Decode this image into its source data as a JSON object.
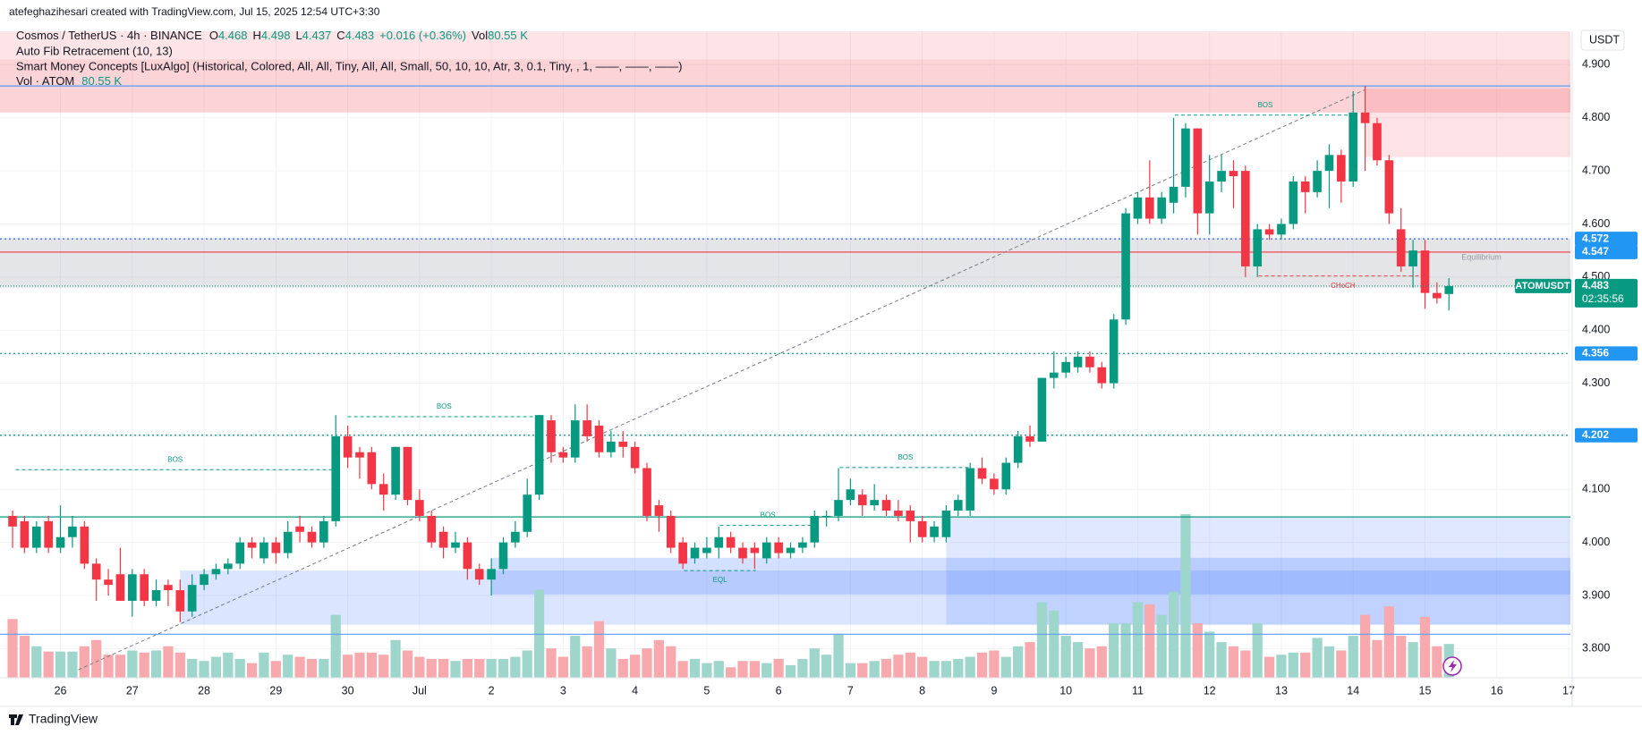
{
  "header": {
    "created": "atefeghazihesari created with TradingView.com, Jul 15, 2025 12:54 UTC+3:30",
    "symbol": "Cosmos / TetherUS · 4h · BINANCE",
    "open_label": "O",
    "high_label": "H",
    "low_label": "L",
    "close_label": "C",
    "change": "+0.016 (+0.36%)",
    "vol_label": "Vol",
    "vol": "80.55 K",
    "indicators": [
      "Auto Fib Retracement (10, 13)",
      "Smart Money Concepts [LuxAlgo] (Historical, Colored, All, All, Tiny, All, All, Small, 50, 10, 10, Atr, 3, 0.1, Tiny, , 1, ——, ——, ——)",
      "Vol · ATOM"
    ],
    "vol_indicator_value": "80.55 K"
  },
  "chart_data": {
    "type": "candlestick",
    "unit": "USDT",
    "grid": true,
    "up_color": "#089981",
    "down_color": "#f23645",
    "volume_up_color": "#9fd6cc",
    "volume_down_color": "#f7a9ad",
    "xlim": [
      -1.05,
      130.15
    ],
    "ylim": [
      3.745,
      4.963
    ],
    "xticks": [
      {
        "value": 4,
        "label": "26"
      },
      {
        "value": 10,
        "label": "27"
      },
      {
        "value": 16,
        "label": "28"
      },
      {
        "value": 22,
        "label": "29"
      },
      {
        "value": 28,
        "label": "30"
      },
      {
        "value": 34,
        "label": "Jul"
      },
      {
        "value": 40,
        "label": "2"
      },
      {
        "value": 46,
        "label": "3"
      },
      {
        "value": 52,
        "label": "4"
      },
      {
        "value": 58,
        "label": "5"
      },
      {
        "value": 64,
        "label": "6"
      },
      {
        "value": 70,
        "label": "7"
      },
      {
        "value": 76,
        "label": "8"
      },
      {
        "value": 82,
        "label": "9"
      },
      {
        "value": 88,
        "label": "10"
      },
      {
        "value": 94,
        "label": "11"
      },
      {
        "value": 100,
        "label": "12"
      },
      {
        "value": 106,
        "label": "13"
      },
      {
        "value": 112,
        "label": "14"
      },
      {
        "value": 118,
        "label": "15"
      },
      {
        "value": 124,
        "label": "16"
      },
      {
        "value": 130,
        "label": "17"
      }
    ],
    "yticks": [
      {
        "value": 3.8,
        "label": "3.800"
      },
      {
        "value": 3.9,
        "label": "3.900"
      },
      {
        "value": 4.0,
        "label": "4.000"
      },
      {
        "value": 4.1,
        "label": "4.100"
      },
      {
        "value": 4.2,
        "label": "4.200"
      },
      {
        "value": 4.3,
        "label": "4.300"
      },
      {
        "value": 4.4,
        "label": "4.400"
      },
      {
        "value": 4.5,
        "label": "4.500"
      },
      {
        "value": 4.6,
        "label": "4.600"
      },
      {
        "value": 4.7,
        "label": "4.700"
      },
      {
        "value": 4.8,
        "label": "4.800"
      },
      {
        "value": 4.9,
        "label": "4.900"
      }
    ],
    "open": [
      4.05,
      4.04,
      3.99,
      4.04,
      3.99,
      4.01,
      4.03,
      3.96,
      3.93,
      3.94,
      3.89,
      3.94,
      3.89,
      3.92,
      3.91,
      3.87,
      3.92,
      3.94,
      3.95,
      3.96,
      4.0,
      3.97,
      4.0,
      3.98,
      4.03,
      4.02,
      4.0,
      4.04,
      4.2,
      4.17,
      4.17,
      4.11,
      4.09,
      4.18,
      4.08,
      4.05,
      4.02,
      3.99,
      4.0,
      3.95,
      3.93,
      3.95,
      4.0,
      4.02,
      4.09,
      4.23,
      4.17,
      4.16,
      4.23,
      4.22,
      4.17,
      4.19,
      4.18,
      4.14,
      4.07,
      4.05,
      4.0,
      3.97,
      3.98,
      3.99,
      4.01,
      3.99,
      3.99,
      3.97,
      4.0,
      3.98,
      3.99,
      4.0,
      4.05,
      4.05,
      4.08,
      4.09,
      4.07,
      4.08,
      4.06,
      4.06,
      4.04,
      4.01,
      4.01,
      4.06,
      4.06,
      4.14,
      4.12,
      4.1,
      4.15,
      4.2,
      4.19,
      4.31,
      4.32,
      4.33,
      4.35,
      4.33,
      4.3,
      4.42,
      4.61,
      4.65,
      4.61,
      4.64,
      4.67,
      4.78,
      4.62,
      4.68,
      4.7,
      4.7,
      4.52,
      4.59,
      4.58,
      4.6,
      4.68,
      4.66,
      4.7,
      4.73,
      4.68,
      4.81,
      4.79,
      4.72,
      4.59,
      4.52,
      4.55,
      4.47,
      4.468
    ],
    "high": [
      4.06,
      4.05,
      4.04,
      4.05,
      4.07,
      4.05,
      4.04,
      3.97,
      3.95,
      3.99,
      3.95,
      3.95,
      3.93,
      3.93,
      3.93,
      3.94,
      3.95,
      3.96,
      3.97,
      4.01,
      4.01,
      4.01,
      4.01,
      4.04,
      4.05,
      4.03,
      4.05,
      4.24,
      4.22,
      4.18,
      4.18,
      4.13,
      4.18,
      4.18,
      4.1,
      4.06,
      4.03,
      4.02,
      4.01,
      3.96,
      3.97,
      4.01,
      4.04,
      4.12,
      4.24,
      4.24,
      4.18,
      4.26,
      4.26,
      4.23,
      4.21,
      4.21,
      4.19,
      4.15,
      4.08,
      4.06,
      4.01,
      4.0,
      4.01,
      4.03,
      4.02,
      4.0,
      4.0,
      4.01,
      4.01,
      4.0,
      4.01,
      4.06,
      4.06,
      4.14,
      4.12,
      4.1,
      4.11,
      4.09,
      4.08,
      4.07,
      4.05,
      4.04,
      4.07,
      4.09,
      4.15,
      4.16,
      4.13,
      4.16,
      4.21,
      4.22,
      4.31,
      4.36,
      4.35,
      4.36,
      4.36,
      4.34,
      4.43,
      4.63,
      4.66,
      4.72,
      4.66,
      4.8,
      4.79,
      4.78,
      4.73,
      4.73,
      4.72,
      4.71,
      4.6,
      4.6,
      4.61,
      4.69,
      4.69,
      4.72,
      4.75,
      4.74,
      4.85,
      4.86,
      4.8,
      4.73,
      4.63,
      4.57,
      4.57,
      4.49,
      4.498
    ],
    "low": [
      3.99,
      3.98,
      3.98,
      3.98,
      3.98,
      3.99,
      3.95,
      3.89,
      3.9,
      3.89,
      3.86,
      3.88,
      3.88,
      3.88,
      3.85,
      3.86,
      3.91,
      3.93,
      3.94,
      3.95,
      3.97,
      3.96,
      3.96,
      3.97,
      4.0,
      3.99,
      3.99,
      4.03,
      4.14,
      4.12,
      4.1,
      4.06,
      4.08,
      4.07,
      4.04,
      3.99,
      3.97,
      3.98,
      3.93,
      3.92,
      3.9,
      3.94,
      3.99,
      4.01,
      4.08,
      4.15,
      4.15,
      4.15,
      4.19,
      4.16,
      4.16,
      4.16,
      4.13,
      4.04,
      4.02,
      3.98,
      3.95,
      3.96,
      3.97,
      3.97,
      3.98,
      3.96,
      3.95,
      3.96,
      3.97,
      3.97,
      3.98,
      3.99,
      4.03,
      4.04,
      4.07,
      4.05,
      4.06,
      4.05,
      4.04,
      4.0,
      4.0,
      4.0,
      4.0,
      4.05,
      4.05,
      4.11,
      4.09,
      4.09,
      4.14,
      4.18,
      4.19,
      4.29,
      4.31,
      4.32,
      4.32,
      4.29,
      4.29,
      4.41,
      4.6,
      4.6,
      4.6,
      4.62,
      4.65,
      4.58,
      4.58,
      4.66,
      4.63,
      4.5,
      4.5,
      4.57,
      4.57,
      4.59,
      4.62,
      4.65,
      4.63,
      4.64,
      4.67,
      4.7,
      4.71,
      4.6,
      4.51,
      4.48,
      4.44,
      4.45,
      4.437
    ],
    "close": [
      4.03,
      3.99,
      4.03,
      3.99,
      4.01,
      4.03,
      3.96,
      3.93,
      3.92,
      3.89,
      3.94,
      3.89,
      3.91,
      3.91,
      3.87,
      3.92,
      3.94,
      3.95,
      3.96,
      4.0,
      3.99,
      4.0,
      3.98,
      4.02,
      4.02,
      4.0,
      4.04,
      4.2,
      4.16,
      4.16,
      4.11,
      4.09,
      4.18,
      4.08,
      4.05,
      4.0,
      3.99,
      4.0,
      3.95,
      3.93,
      3.95,
      4.0,
      4.02,
      4.09,
      4.24,
      4.17,
      4.16,
      4.23,
      4.2,
      4.17,
      4.19,
      4.18,
      4.14,
      4.05,
      4.05,
      3.99,
      3.96,
      3.99,
      3.99,
      4.01,
      3.99,
      3.97,
      3.98,
      4.0,
      3.98,
      3.99,
      4.0,
      4.05,
      4.05,
      4.08,
      4.1,
      4.07,
      4.08,
      4.06,
      4.05,
      4.04,
      4.01,
      4.03,
      4.06,
      4.08,
      4.14,
      4.12,
      4.1,
      4.15,
      4.2,
      4.19,
      4.31,
      4.32,
      4.34,
      4.35,
      4.33,
      4.3,
      4.42,
      4.62,
      4.65,
      4.61,
      4.65,
      4.67,
      4.78,
      4.62,
      4.68,
      4.7,
      4.69,
      4.52,
      4.59,
      4.58,
      4.6,
      4.68,
      4.66,
      4.7,
      4.73,
      4.68,
      4.81,
      4.79,
      4.72,
      4.62,
      4.52,
      4.55,
      4.47,
      4.46,
      4.483
    ],
    "volume": [
      140,
      100,
      75,
      62.5,
      62.5,
      62.5,
      75,
      90,
      55,
      55,
      65,
      60,
      65,
      75,
      60,
      45,
      40,
      50,
      60,
      45,
      35,
      60,
      40,
      55,
      50,
      45,
      45,
      150,
      55,
      60,
      60,
      55,
      90,
      65,
      50,
      45,
      45,
      40,
      45,
      45,
      45,
      45,
      50,
      65,
      210,
      70,
      50,
      100,
      75,
      135,
      70,
      45,
      55,
      70,
      90,
      75,
      40,
      45,
      35,
      40,
      25,
      40,
      40,
      35,
      45,
      30,
      45,
      70,
      55,
      105,
      35,
      35,
      40,
      45,
      55,
      60,
      50,
      40,
      40,
      45,
      50,
      60,
      65,
      50,
      75,
      85,
      180,
      160,
      100,
      85,
      70,
      75,
      130,
      130,
      180,
      175,
      150,
      205,
      390,
      130,
      110,
      85,
      75,
      65,
      130,
      50,
      55,
      60,
      60,
      95,
      75,
      65,
      100,
      150,
      90,
      170,
      100,
      85,
      145,
      75,
      80.55
    ],
    "zones": [
      {
        "start": -1.05,
        "low": 4.91,
        "high": 4.963,
        "color": "rgba(242,54,69,0.13)"
      },
      {
        "start": -1.05,
        "low": 4.81,
        "high": 4.91,
        "color": "rgba(242,54,69,0.22)"
      },
      {
        "start": 113,
        "low": 4.726,
        "high": 4.855,
        "color": "rgba(242,54,69,0.14)"
      },
      {
        "start": -1.05,
        "low": 4.48,
        "high": 4.573,
        "color": "rgba(120,123,134,0.2)"
      },
      {
        "start": 14,
        "low": 3.845,
        "high": 3.947,
        "color": "rgba(41,98,255,0.17)"
      },
      {
        "start": 40,
        "low": 3.902,
        "high": 3.971,
        "color": "rgba(41,98,255,0.2)"
      },
      {
        "start": 78,
        "low": 3.845,
        "high": 4.048,
        "color": "rgba(41,98,255,0.15)"
      }
    ],
    "equilibrium_label": "Equilibrium",
    "levels": [
      {
        "value": 4.86,
        "color": "#5b9cf6",
        "style": "solid",
        "tag": false
      },
      {
        "value": 4.048,
        "color": "#089981",
        "style": "solid",
        "tag": false
      },
      {
        "value": 3.827,
        "color": "#5b9cf6",
        "style": "solid",
        "tag": false
      },
      {
        "value": 4.572,
        "color": "#2962ff",
        "style": "dotted",
        "tag": true
      },
      {
        "value": 4.547,
        "color": "#f23645",
        "style": "solid",
        "tag": true
      },
      {
        "value": 4.356,
        "color": "#089981",
        "style": "dotted",
        "tag": true
      },
      {
        "value": 4.202,
        "color": "#089981",
        "style": "dotted",
        "tag": true
      }
    ],
    "tag_color": "#2196f3",
    "structure": [
      {
        "text": "BOS",
        "start": 0.26,
        "end": 26.9,
        "price": 4.137,
        "color": "#089981",
        "position": "above"
      },
      {
        "text": "BOS",
        "start": 28,
        "end": 44.1,
        "price": 4.237,
        "color": "#089981",
        "position": "above"
      },
      {
        "text": "BOS",
        "start": 59.1,
        "end": 67.1,
        "price": 4.032,
        "color": "#089981",
        "position": "above"
      },
      {
        "text": "BOS",
        "start": 69.1,
        "end": 80.1,
        "price": 4.141,
        "color": "#089981",
        "position": "above"
      },
      {
        "text": "BOS",
        "start": 97.1,
        "end": 112.2,
        "price": 4.805,
        "color": "#089981",
        "position": "above"
      },
      {
        "text": "EQL",
        "start": 56.1,
        "end": 62.1,
        "price": 3.947,
        "color": "#089981",
        "position": "below"
      },
      {
        "text": "CHoCH",
        "start": 104.1,
        "end": 118.2,
        "price": 4.502,
        "color": "#f23645",
        "position": "below"
      }
    ],
    "fib_line": {
      "x": [
        5.5,
        113
      ],
      "y": [
        3.76,
        4.853
      ]
    },
    "last": {
      "symbol": "ATOMUSDT",
      "countdown": "02:35:56"
    }
  },
  "footer": {
    "brand": "TradingView"
  }
}
